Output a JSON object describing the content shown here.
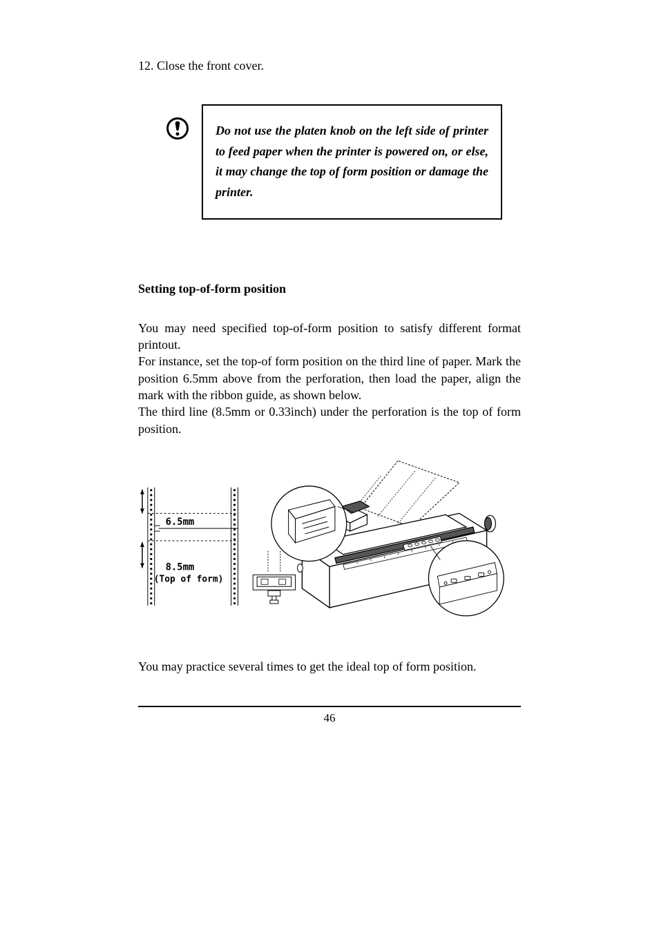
{
  "step": "12. Close the front cover.",
  "callout": {
    "text": "Do not use the platen knob on the left side of printer to feed paper when the printer is powered on, or else, it may change the top of form position or damage the printer."
  },
  "heading": "Setting top-of-form position",
  "para1": "You may need specified top-of-form position to satisfy different format printout.",
  "para2": "For instance, set the top-of form position on the third line of paper. Mark the position 6.5mm above from the perforation, then load the paper, align the mark with the ribbon guide, as shown below.",
  "para3": "The third line (8.5mm or 0.33inch) under the perforation is the top of form position.",
  "illustration": {
    "label1": "6.5mm",
    "label2": "8.5mm",
    "label3": "(Top of form)",
    "colors": {
      "stroke": "#000000",
      "fill_dark": "#555555",
      "fill_light": "#ffffff"
    }
  },
  "closing": "You may practice several times to get the ideal top of form position.",
  "page_number": "46"
}
